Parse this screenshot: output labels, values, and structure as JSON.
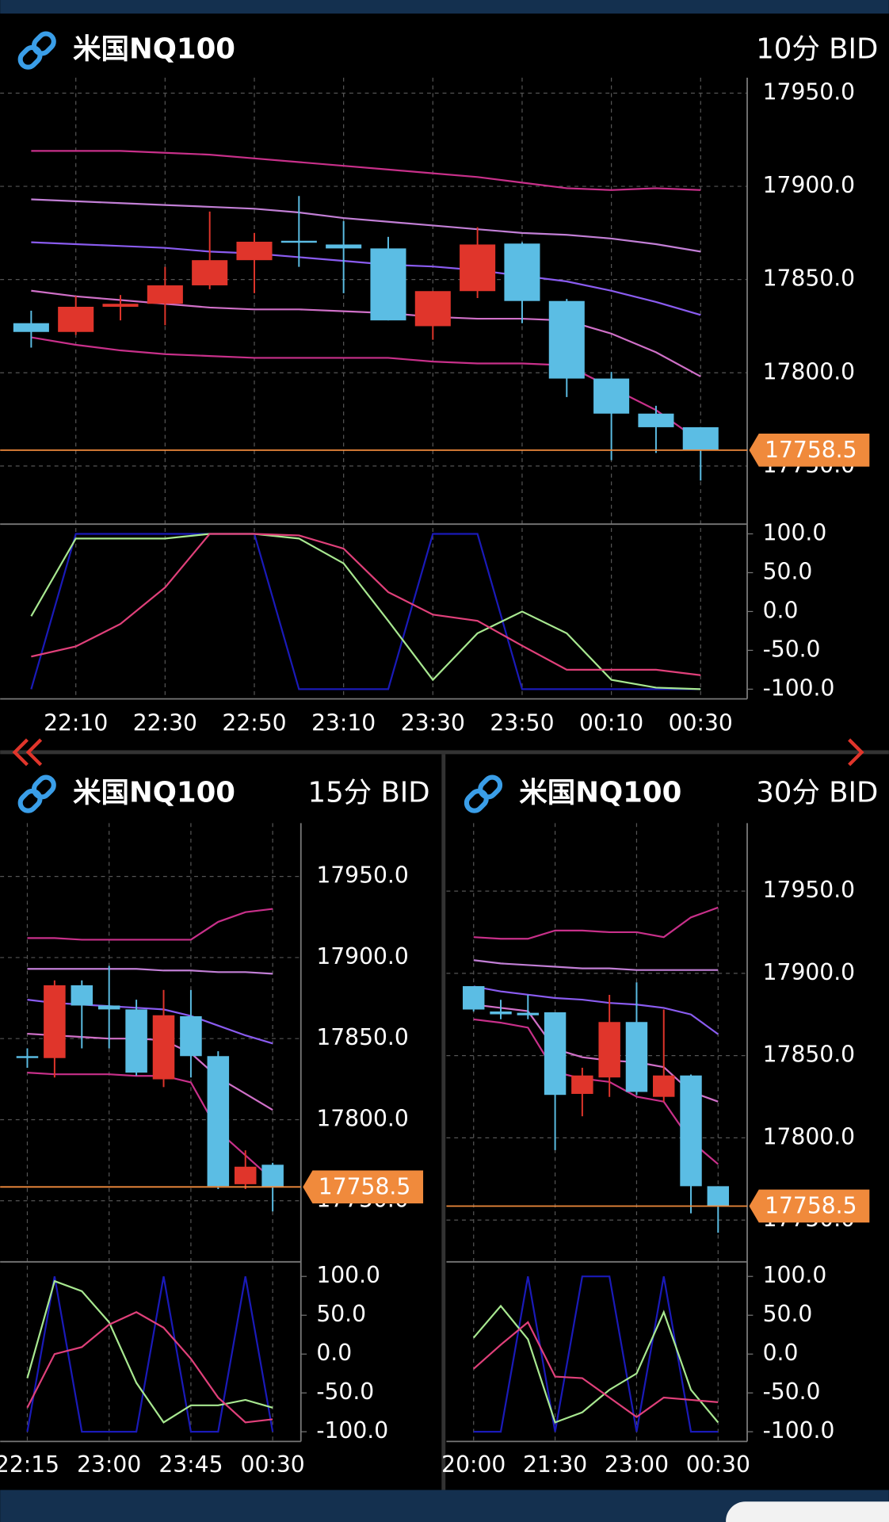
{
  "chart_data": [
    {
      "type": "candlestick",
      "title": "米国NQ100",
      "timeframe": "10分 BID",
      "categories": [
        null,
        "22:10",
        null,
        "22:30",
        null,
        "22:50",
        null,
        "23:10",
        null,
        "23:30",
        null,
        "23:50",
        null,
        "00:10",
        null,
        "00:30"
      ],
      "open": [
        17826.6,
        17821.9,
        17835.4,
        17837.0,
        17846.9,
        17860.4,
        17870.8,
        17868.8,
        17866.7,
        17825.0,
        17843.8,
        17869.3,
        17838.5,
        17796.9,
        17778.1,
        17770.8
      ],
      "high": [
        17833.3,
        17841.2,
        17841.7,
        17856.8,
        17886.5,
        17875.0,
        17894.8,
        17881.3,
        17872.9,
        17843.8,
        17878.1,
        17870.0,
        17839.6,
        17800.5,
        17782.3,
        17770.8
      ],
      "low": [
        17813.5,
        17820.3,
        17828.1,
        17825.5,
        17844.8,
        17842.7,
        17856.8,
        17842.7,
        17828.1,
        17817.7,
        17840.1,
        17826.6,
        17787.0,
        17753.1,
        17757.0,
        17742.2
      ],
      "close": [
        17821.9,
        17835.4,
        17837.0,
        17846.9,
        17860.4,
        17870.3,
        17869.8,
        17866.7,
        17828.1,
        17843.8,
        17868.8,
        17838.5,
        17796.9,
        17778.1,
        17770.8,
        17758.5
      ],
      "up_color": "#e0352b",
      "down_color": "#5bbde4",
      "ylim": [
        17718.8,
        17958.3
      ],
      "yticks": [
        {
          "value": 17750,
          "label": "17750.0"
        },
        {
          "value": 17800,
          "label": "17800.0"
        },
        {
          "value": 17850,
          "label": "17850.0"
        },
        {
          "value": 17900,
          "label": "17900.0"
        },
        {
          "value": 17950,
          "label": "17950.0"
        }
      ],
      "grid": true,
      "bands": [
        {
          "color": "#c8308a",
          "values": [
            17919,
            17919,
            17919,
            17918,
            17917,
            17915,
            17913,
            17911,
            17909,
            17907,
            17905,
            17902,
            17899,
            17898,
            17899,
            17898
          ]
        },
        {
          "color": "#c27fd6",
          "values": [
            17893,
            17892,
            17891,
            17890,
            17889,
            17888,
            17886,
            17883,
            17881,
            17879,
            17877,
            17875,
            17874,
            17872,
            17869,
            17865
          ]
        },
        {
          "color": "#8a5cf0",
          "values": [
            17870,
            17869,
            17868,
            17867,
            17865,
            17864,
            17862,
            17860,
            17858,
            17857,
            17855,
            17852,
            17849,
            17844,
            17838,
            17831
          ]
        },
        {
          "color": "#d070c8",
          "values": [
            17844,
            17841,
            17839,
            17837,
            17835,
            17834,
            17834,
            17833,
            17832,
            17830,
            17829,
            17829,
            17828,
            17821,
            17811,
            17798
          ]
        },
        {
          "color": "#c8308a",
          "values": [
            17819,
            17815,
            17812,
            17810,
            17809,
            17808,
            17808,
            17808,
            17808,
            17806,
            17805,
            17805,
            17804,
            17792,
            17780,
            17763
          ]
        }
      ],
      "current_price": 17758.5,
      "current_price_color": "#f08a3c",
      "oscillator": {
        "ylim": [
          -112.5,
          112.5
        ],
        "yticks": [
          {
            "value": -100,
            "label": "-100.0"
          },
          {
            "value": -50,
            "label": "-50.0"
          },
          {
            "value": 0,
            "label": "0.0"
          },
          {
            "value": 50,
            "label": "50.0"
          },
          {
            "value": 100,
            "label": "100.0"
          }
        ],
        "series": [
          {
            "color": "#1a1ab8",
            "values": [
              -100,
              100,
              100,
              100,
              100,
              100,
              -100,
              -100,
              -100,
              100,
              100,
              -100,
              -100,
              -100,
              -100,
              -100
            ]
          },
          {
            "color": "#a8e890",
            "values": [
              -6,
              94,
              94,
              94,
              100,
              100,
              94,
              62,
              -12,
              -88,
              -28,
              0,
              -28,
              -88,
              -98,
              -100
            ]
          },
          {
            "color": "#e0407a",
            "values": [
              -58,
              -45,
              -16,
              31,
              100,
              100,
              98,
              81,
              25,
              -4,
              -12,
              -44,
              -75,
              -75,
              -75,
              -82
            ]
          }
        ]
      }
    },
    {
      "type": "candlestick",
      "title": "米国NQ100",
      "timeframe": "15分 BID",
      "categories": [
        "22:15",
        null,
        null,
        "23:00",
        null,
        null,
        "23:45",
        null,
        null,
        "00:30"
      ],
      "open": [
        17839.2,
        17838.0,
        17882.9,
        17870.4,
        17868.0,
        17824.9,
        17863.8,
        17839.2,
        17760.2,
        17772.2
      ],
      "high": [
        17844.0,
        17885.9,
        17885.9,
        17894.9,
        17874.0,
        17880.0,
        17880.0,
        17842.2,
        17781.1,
        17773.4
      ],
      "low": [
        17832.0,
        17826.0,
        17844.0,
        17844.0,
        17827.2,
        17820.1,
        17826.0,
        17757.2,
        17757.2,
        17743.4
      ],
      "close": [
        17838.0,
        17882.9,
        17870.4,
        17868.0,
        17829.0,
        17864.4,
        17839.2,
        17759.0,
        17771.0,
        17758.5
      ],
      "up_color": "#e0352b",
      "down_color": "#5bbde4",
      "ylim": [
        17712.3,
        17982.9
      ],
      "yticks": [
        {
          "value": 17750,
          "label": "17750.0"
        },
        {
          "value": 17800,
          "label": "17800.0"
        },
        {
          "value": 17850,
          "label": "17850.0"
        },
        {
          "value": 17900,
          "label": "17900.0"
        },
        {
          "value": 17950,
          "label": "17950.0"
        }
      ],
      "grid": true,
      "bands": [
        {
          "color": "#c8308a",
          "values": [
            17912,
            17912,
            17911,
            17911,
            17911,
            17911,
            17911,
            17922,
            17928,
            17930
          ]
        },
        {
          "color": "#c27fd6",
          "values": [
            17893,
            17893,
            17893,
            17893,
            17893,
            17892,
            17892,
            17891,
            17891,
            17890
          ]
        },
        {
          "color": "#8a5cf0",
          "values": [
            17874,
            17872,
            17871,
            17870,
            17869,
            17868,
            17864,
            17858,
            17852,
            17847
          ]
        },
        {
          "color": "#d070c8",
          "values": [
            17853,
            17852,
            17851,
            17850,
            17850,
            17849,
            17841,
            17826,
            17816,
            17806
          ]
        },
        {
          "color": "#c8308a",
          "values": [
            17829,
            17828,
            17828,
            17828,
            17827,
            17827,
            17823,
            17793,
            17778,
            17763
          ]
        }
      ],
      "current_price": 17758.5,
      "current_price_color": "#f08a3c",
      "oscillator": {
        "ylim": [
          -112.5,
          112.5
        ],
        "yticks": [
          {
            "value": -100,
            "label": "-100.0"
          },
          {
            "value": -50,
            "label": "-50.0"
          },
          {
            "value": 0,
            "label": "0.0"
          },
          {
            "value": 50,
            "label": "50.0"
          },
          {
            "value": 100,
            "label": "100.0"
          }
        ],
        "series": [
          {
            "color": "#1a1ab8",
            "values": [
              -100,
              100,
              -100,
              -100,
              -100,
              100,
              -100,
              -100,
              100,
              -100
            ]
          },
          {
            "color": "#a8e890",
            "values": [
              -31,
              94,
              81,
              41,
              -37,
              -88,
              -66,
              -66,
              -59,
              -69
            ]
          },
          {
            "color": "#e0407a",
            "values": [
              -69,
              0,
              9,
              38,
              54,
              34,
              -6,
              -56,
              -88,
              -84
            ]
          }
        ]
      }
    },
    {
      "type": "candlestick",
      "title": "米国NQ100",
      "timeframe": "30分 BID",
      "categories": [
        "20:00",
        null,
        null,
        "21:30",
        null,
        null,
        "23:00",
        null,
        null,
        "00:30"
      ],
      "open": [
        17892.2,
        17876.8,
        17876.0,
        17876.3,
        17826.7,
        17836.7,
        17870.4,
        17824.9,
        17837.9,
        17770.6
      ],
      "high": [
        17892.2,
        17883.9,
        17886.9,
        17876.3,
        17842.6,
        17886.9,
        17894.5,
        17878.0,
        17838.5,
        17770.6
      ],
      "low": [
        17876.8,
        17872.1,
        17872.1,
        17792.5,
        17813.1,
        17824.9,
        17826.1,
        17822.0,
        17754.1,
        17742.3
      ],
      "close": [
        17878.0,
        17875.1,
        17874.5,
        17826.1,
        17837.9,
        17870.4,
        17827.9,
        17837.9,
        17770.6,
        17758.5
      ],
      "up_color": "#e0352b",
      "down_color": "#5bbde4",
      "ylim": [
        17724.6,
        17991.3
      ],
      "yticks": [
        {
          "value": 17750,
          "label": "17750.0"
        },
        {
          "value": 17800,
          "label": "17800.0"
        },
        {
          "value": 17850,
          "label": "17850.0"
        },
        {
          "value": 17900,
          "label": "17900.0"
        },
        {
          "value": 17950,
          "label": "17950.0"
        }
      ],
      "grid": true,
      "bands": [
        {
          "color": "#c8308a",
          "values": [
            17922,
            17921,
            17921,
            17926,
            17926,
            17925,
            17925,
            17922,
            17934,
            17940
          ]
        },
        {
          "color": "#c27fd6",
          "values": [
            17908,
            17906,
            17905,
            17904,
            17903,
            17903,
            17902,
            17902,
            17902,
            17902
          ]
        },
        {
          "color": "#8a5cf0",
          "values": [
            17892,
            17889,
            17887,
            17885,
            17884,
            17882,
            17881,
            17879,
            17875,
            17863
          ]
        },
        {
          "color": "#d070c8",
          "values": [
            17881,
            17879,
            17877,
            17854,
            17849,
            17847,
            17846,
            17843,
            17828,
            17822
          ]
        },
        {
          "color": "#c8308a",
          "values": [
            17872,
            17870,
            17867,
            17840,
            17836,
            17834,
            17825,
            17822,
            17798,
            17784
          ]
        }
      ],
      "current_price": 17758.5,
      "current_price_color": "#f08a3c",
      "oscillator": {
        "ylim": [
          -112.5,
          112.5
        ],
        "yticks": [
          {
            "value": -100,
            "label": "-100.0"
          },
          {
            "value": -50,
            "label": "-50.0"
          },
          {
            "value": 0,
            "label": "0.0"
          },
          {
            "value": 50,
            "label": "50.0"
          },
          {
            "value": 100,
            "label": "100.0"
          }
        ],
        "series": [
          {
            "color": "#1a1ab8",
            "values": [
              -100,
              -100,
              100,
              -100,
              100,
              100,
              -100,
              100,
              -100,
              -100
            ]
          },
          {
            "color": "#a8e890",
            "values": [
              21,
              62,
              19,
              -88,
              -75,
              -46,
              -25,
              54,
              -46,
              -88
            ]
          },
          {
            "color": "#e0407a",
            "values": [
              -19,
              12,
              41,
              -29,
              -31,
              -56,
              -81,
              -56,
              -59,
              -62
            ]
          }
        ]
      }
    }
  ]
}
